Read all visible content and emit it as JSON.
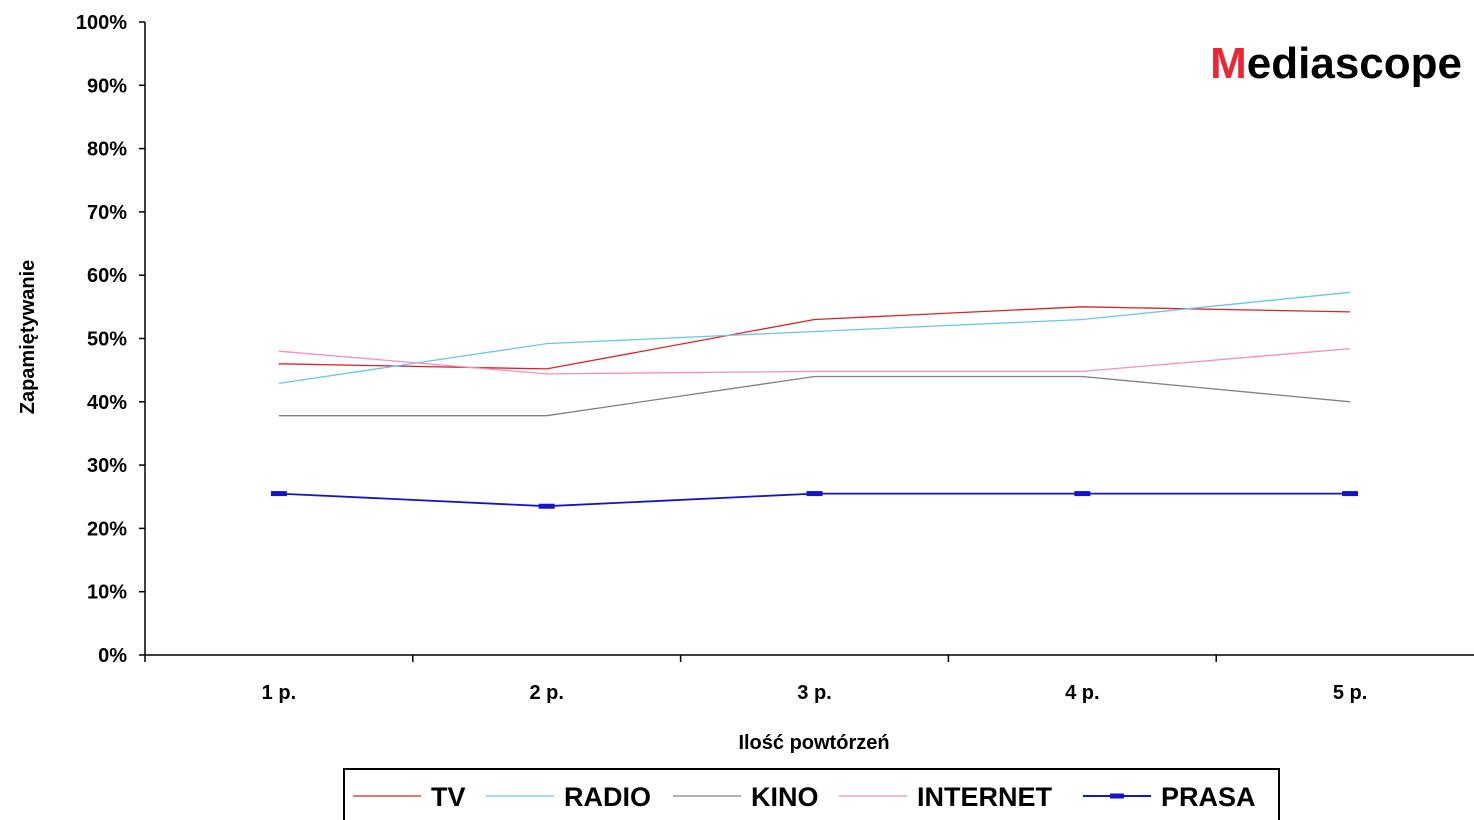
{
  "brand": {
    "initial": "M",
    "rest": "ediascope",
    "initial_color": "#e8283a",
    "rest_color": "#000000"
  },
  "chart_data": {
    "type": "line",
    "title": "",
    "xlabel": "Ilość powtórzeń",
    "ylabel": "Zapamiętywanie",
    "categories": [
      "1 p.",
      "2 p.",
      "3 p.",
      "4 p.",
      "5 p."
    ],
    "ylim": [
      0,
      100
    ],
    "yticks": [
      "0%",
      "10%",
      "20%",
      "30%",
      "40%",
      "50%",
      "60%",
      "70%",
      "80%",
      "90%",
      "100%"
    ],
    "grid": false,
    "legend_position": "bottom",
    "series": [
      {
        "name": "TV",
        "color": "#d8232a",
        "values": [
          46,
          45.2,
          53,
          55,
          54.2
        ]
      },
      {
        "name": "RADIO",
        "color": "#6cc6e8",
        "values": [
          42.9,
          49.2,
          51.1,
          53,
          57.3
        ]
      },
      {
        "name": "KINO",
        "color": "#808080",
        "values": [
          37.8,
          37.8,
          44,
          44,
          40
        ]
      },
      {
        "name": "INTERNET",
        "color": "#f48fbf",
        "values": [
          48,
          44.4,
          44.8,
          44.8,
          48.4
        ]
      },
      {
        "name": "PRASA",
        "color": "#1414c8",
        "values": [
          25.5,
          23.5,
          25.5,
          25.5,
          25.5
        ],
        "marker": "dash"
      }
    ]
  }
}
